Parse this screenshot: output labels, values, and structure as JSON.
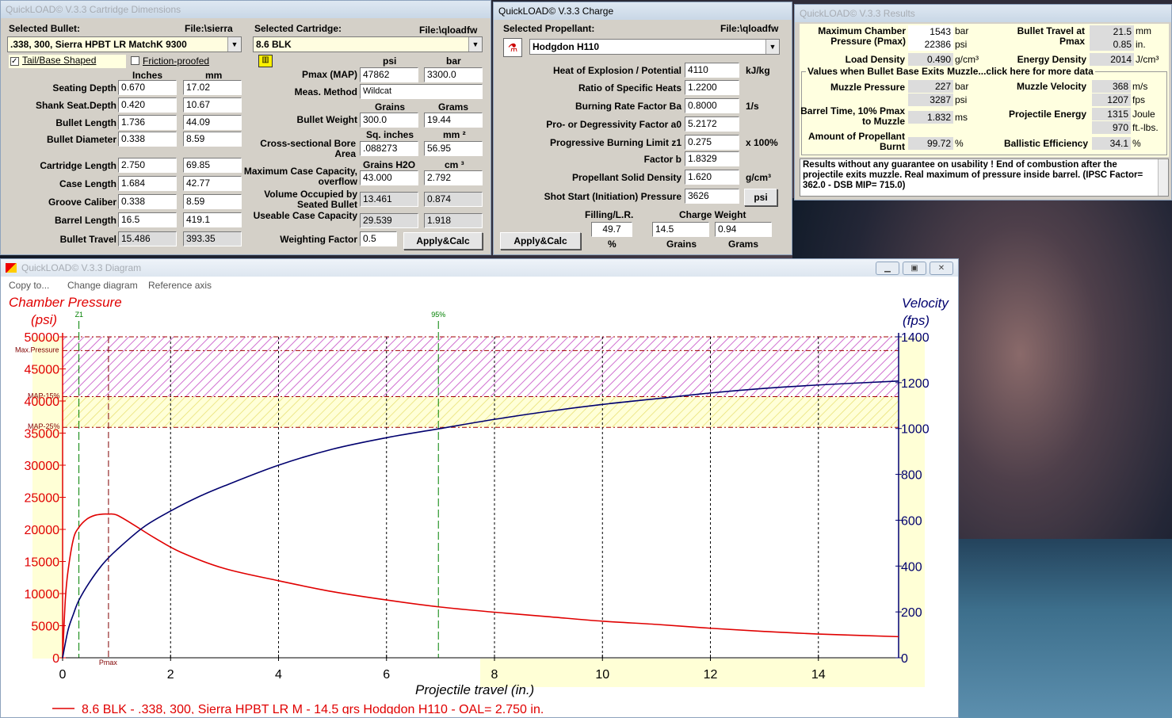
{
  "dims": {
    "title": "QuickLOAD© V.3.3 Cartridge Dimensions",
    "sel_bullet_lbl": "Selected Bullet:",
    "bullet_file": "File:\\sierra",
    "bullet": ".338, 300, Sierra HPBT LR MatchK 9300",
    "sel_cart_lbl": "Selected Cartridge:",
    "cart_file": "File:\\qloadfw",
    "cart": "8.6 BLK",
    "tail": "Tail/Base Shaped",
    "friction": "Friction-proofed",
    "inches": "Inches",
    "mm": "mm",
    "psi": "psi",
    "bar": "bar",
    "rows": [
      {
        "label": "Seating Depth",
        "in": "0.670",
        "mm": "17.02"
      },
      {
        "label": "Shank Seat.Depth",
        "in": "0.420",
        "mm": "10.67"
      },
      {
        "label": "Bullet Length",
        "in": "1.736",
        "mm": "44.09"
      },
      {
        "label": "Bullet Diameter",
        "in": "0.338",
        "mm": "8.59"
      },
      {
        "label": "Cartridge Length",
        "in": "2.750",
        "mm": "69.85"
      },
      {
        "label": "Case Length",
        "in": "1.684",
        "mm": "42.77"
      },
      {
        "label": "Groove Caliber",
        "in": "0.338",
        "mm": "8.59"
      },
      {
        "label": "Barrel Length",
        "in": "16.5",
        "mm": "419.1"
      },
      {
        "label": "Bullet Travel",
        "in": "15.486",
        "mm": "393.35"
      }
    ],
    "pmax_lbl": "Pmax (MAP)",
    "pmax_psi": "47862",
    "pmax_bar": "3300.0",
    "meas_lbl": "Meas. Method",
    "meas": "Wildcat",
    "grains": "Grains",
    "grams": "Grams",
    "bw_lbl": "Bullet Weight",
    "bw_gr": "300.0",
    "bw_g": "19.44",
    "sqin": "Sq. inches",
    "mm2": "mm ²",
    "bore_lbl": "Cross-sectional Bore Area",
    "bore_in": ".088273",
    "bore_mm": "56.95",
    "grh2o": "Grains H2O",
    "cm3": "cm ³",
    "mcc_lbl": "Maximum Case Capacity, overflow",
    "mcc_gr": "43.000",
    "mcc_cm": "2.792",
    "voc_lbl": "Volume Occupied by Seated Bullet",
    "voc_gr": "13.461",
    "voc_cm": "0.874",
    "ucc_lbl": "Useable Case Capacity",
    "ucc_gr": "29.539",
    "ucc_cm": "1.918",
    "wf_lbl": "Weighting Factor",
    "wf": "0.5",
    "apply": "Apply&Calc"
  },
  "charge": {
    "title": "QuickLOAD© V.3.3 Charge",
    "sel_lbl": "Selected Propellant:",
    "file": "File:\\qloadfw",
    "prop": "Hodgdon H110",
    "rows": [
      {
        "label": "Heat of Explosion / Potential",
        "val": "4110",
        "unit": "kJ/kg"
      },
      {
        "label": "Ratio of Specific Heats",
        "val": "1.2200",
        "unit": ""
      },
      {
        "label": "Burning Rate Factor  Ba",
        "val": "0.8000",
        "unit": "1/s"
      },
      {
        "label": "Pro- or Degressivity Factor  a0",
        "val": "5.2172",
        "unit": ""
      },
      {
        "label": "Progressive Burning Limit z1",
        "val": "0.275",
        "unit": "x 100%"
      },
      {
        "label": "Factor  b",
        "val": "1.8329",
        "unit": ""
      },
      {
        "label": "Propellant Solid Density",
        "val": "1.620",
        "unit": "g/cm³"
      }
    ],
    "shot_lbl": "Shot Start (Initiation) Pressure",
    "shot": "3626",
    "shot_unit": "psi",
    "fill_lbl": "Filling/L.R.",
    "fill": "49.7",
    "fill_unit": "%",
    "cw_lbl": "Charge Weight",
    "cw_gr": "14.5",
    "cw_g": "0.94",
    "grains": "Grains",
    "grams": "Grams",
    "apply": "Apply&Calc"
  },
  "results": {
    "title": "QuickLOAD© V.3.3 Results",
    "mcp_lbl": "Maximum Chamber Pressure (Pmax)",
    "mcp_bar": "1543",
    "mcp_bar_u": "bar",
    "mcp_psi": "22386",
    "mcp_psi_u": "psi",
    "bt_lbl": "Bullet Travel at Pmax",
    "bt_mm": "21.5",
    "bt_mm_u": "mm",
    "bt_in": "0.85",
    "bt_in_u": "in.",
    "ld_lbl": "Load Density",
    "ld": "0.490",
    "ld_u": "g/cm³",
    "ed_lbl": "Energy Density",
    "ed": "2014",
    "ed_u": "J/cm³",
    "group": "Values when Bullet Base Exits Muzzle...click here for more data",
    "mp_lbl": "Muzzle Pressure",
    "mp_bar": "227",
    "mp_bar_u": "bar",
    "mp_psi": "3287",
    "mp_psi_u": "psi",
    "mv_lbl": "Muzzle Velocity",
    "mv_ms": "368",
    "mv_ms_u": "m/s",
    "mv_fps": "1207",
    "mv_fps_u": "fps",
    "bt10_lbl": "Barrel Time, 10% Pmax to Muzzle",
    "bt10": "1.832",
    "bt10_u": "ms",
    "pe_lbl": "Projectile Energy",
    "pe_j": "1315",
    "pe_j_u": "Joule",
    "pe_ft": "970",
    "pe_ft_u": "ft.-lbs.",
    "ap_lbl": "Amount of Propellant Burnt",
    "ap": "99.72",
    "ap_u": "%",
    "be_lbl": "Ballistic Efficiency",
    "be": "34.1",
    "be_u": "%",
    "note": "Results without any guarantee on usability !  End of combustion after the projectile exits muzzle.  Real maximum of pressure inside barrel.  (IPSC Factor= 362.0 - DSB MIP= 715.0)"
  },
  "diagram": {
    "title": "QuickLOAD© V.3.3 Diagram",
    "menu": [
      "Copy to...",
      "Change diagram",
      "Reference axis"
    ],
    "left_title1": "Chamber Pressure",
    "left_title2": "(psi)",
    "right_title1": "Velocity",
    "right_title2": "(fps)",
    "xlabel": "Projectile travel (in.)",
    "z1": "Z1",
    "p95": "95%",
    "maxp": "Max.Pressure",
    "map15": "MAP-15%",
    "map25": "MAP-25%",
    "pmax": "Pmax",
    "legend": "8.6 BLK - .338, 300, Sierra HPBT LR M - 14.5 grs Hodgdon H110 - OAL= 2.750 in.",
    "colors": {
      "pressure": "#e00000",
      "velocity": "#00006e"
    }
  },
  "chart_data": {
    "type": "line",
    "xlabel": "Projectile travel (in.)",
    "ylabel": "Chamber Pressure (psi)",
    "y2label": "Velocity (fps)",
    "xlim": [
      0,
      15.486
    ],
    "ylim": [
      0,
      50000
    ],
    "y2lim": [
      0,
      1400
    ],
    "xticks": [
      0,
      2,
      4,
      6,
      8,
      10,
      12,
      14
    ],
    "yticks": [
      0,
      5000,
      10000,
      15000,
      20000,
      25000,
      30000,
      35000,
      40000,
      45000,
      50000
    ],
    "y2ticks": [
      0,
      200,
      400,
      600,
      800,
      1000,
      1200,
      1400
    ],
    "series": [
      {
        "axis": "left",
        "x": [
          0,
          0.05,
          0.1,
          0.2,
          0.3,
          0.45,
          0.6,
          0.75,
          0.85,
          1.0,
          1.3,
          1.7,
          2.2,
          3,
          4,
          5,
          6,
          7,
          8,
          9,
          10,
          11,
          12,
          13,
          14,
          15.486
        ],
        "values": [
          0,
          9000,
          13500,
          18500,
          20300,
          21600,
          22200,
          22380,
          22386,
          22250,
          20800,
          18700,
          16400,
          13900,
          12000,
          10300,
          9000,
          7900,
          7100,
          6400,
          5700,
          5200,
          4600,
          4100,
          3700,
          3287
        ]
      },
      {
        "axis": "right",
        "x": [
          0,
          0.1,
          0.2,
          0.3,
          0.5,
          0.75,
          1.0,
          1.5,
          2,
          2.5,
          3,
          4,
          5,
          6,
          7,
          8,
          9,
          10,
          11,
          12,
          13,
          14,
          15.486
        ],
        "values": [
          0,
          120,
          190,
          250,
          330,
          410,
          470,
          570,
          640,
          700,
          750,
          840,
          910,
          960,
          1000,
          1040,
          1075,
          1105,
          1130,
          1155,
          1175,
          1190,
          1207
        ]
      }
    ]
  }
}
